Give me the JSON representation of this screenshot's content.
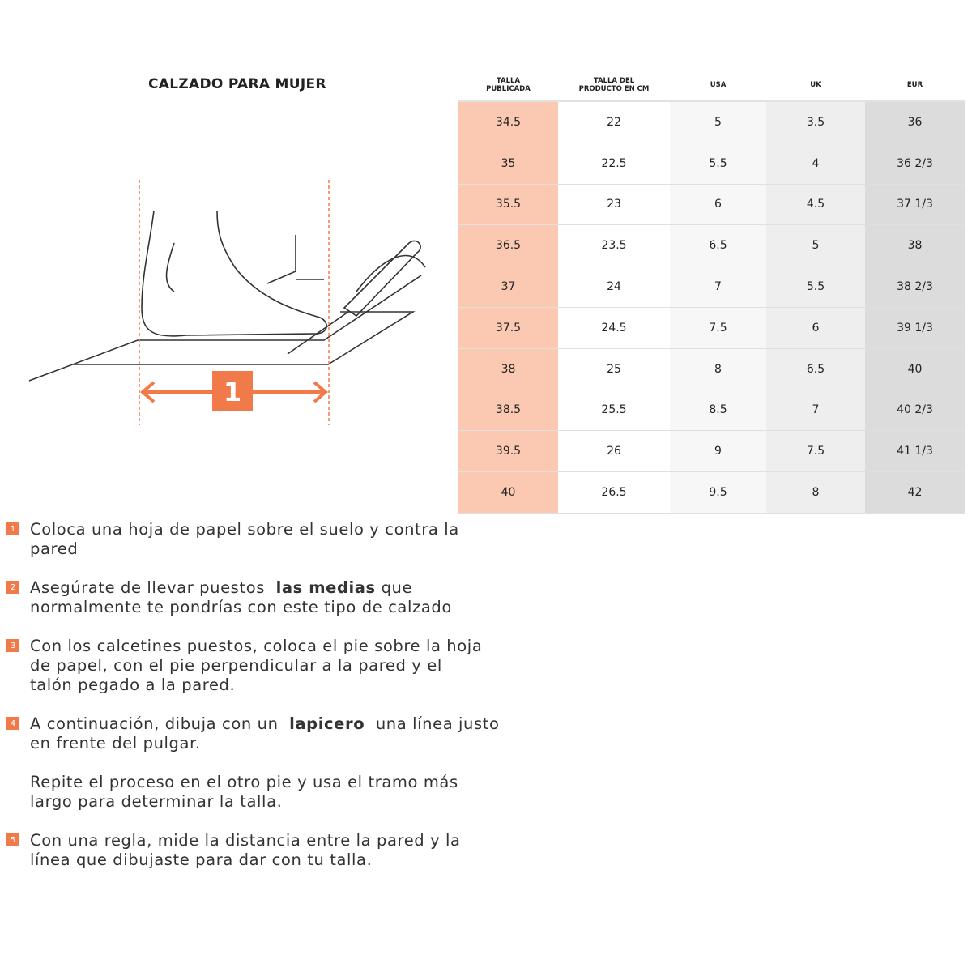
{
  "title": "CALZADO PARA MUJER",
  "diagram": {
    "marker_label": "1",
    "accent": "#f07a4a"
  },
  "table": {
    "headers": [
      "TALLA\nPUBLICADA",
      "TALLA DEL\nPRODUCTO EN CM",
      "USA",
      "UK",
      "EUR"
    ],
    "rows": [
      [
        "34.5",
        "22",
        "5",
        "3.5",
        "36"
      ],
      [
        "35",
        "22.5",
        "5.5",
        "4",
        "36 2/3"
      ],
      [
        "35.5",
        "23",
        "6",
        "4.5",
        "37 1/3"
      ],
      [
        "36.5",
        "23.5",
        "6.5",
        "5",
        "38"
      ],
      [
        "37",
        "24",
        "7",
        "5.5",
        "38 2/3"
      ],
      [
        "37.5",
        "24.5",
        "7.5",
        "6",
        "39 1/3"
      ],
      [
        "38",
        "25",
        "8",
        "6.5",
        "40"
      ],
      [
        "38.5",
        "25.5",
        "8.5",
        "7",
        "40 2/3"
      ],
      [
        "39.5",
        "26",
        "9",
        "7.5",
        "41 1/3"
      ],
      [
        "40",
        "26.5",
        "9.5",
        "8",
        "42"
      ]
    ],
    "column_colors": [
      "#fbc9b2",
      "#ffffff",
      "#f7f7f7",
      "#eeeeee",
      "#dcdcdc"
    ]
  },
  "steps": [
    {
      "badge": "1",
      "lines": [
        [
          {
            "t": "Coloca una hoja de papel sobre el suelo y contra la"
          }
        ],
        [
          {
            "t": "pared"
          }
        ]
      ]
    },
    {
      "badge": "2",
      "lines": [
        [
          {
            "t": "Asegúrate de llevar puestos  "
          },
          {
            "t": "las medias",
            "b": true
          },
          {
            "t": " que"
          }
        ],
        [
          {
            "t": "normalmente te pondrías con este tipo de calzado"
          }
        ]
      ]
    },
    {
      "badge": "3",
      "lines": [
        [
          {
            "t": "Con los calcetines puestos, coloca el pie sobre la hoja"
          }
        ],
        [
          {
            "t": "de papel, con el pie perpendicular a la pared y el"
          }
        ],
        [
          {
            "t": "talón pegado a la pared."
          }
        ]
      ]
    },
    {
      "badge": "4",
      "lines": [
        [
          {
            "t": "A continuación, dibuja con un  "
          },
          {
            "t": "lapicero",
            "b": true
          },
          {
            "t": "  una línea justo"
          }
        ],
        [
          {
            "t": "en frente del pulgar."
          }
        ]
      ]
    },
    {
      "badge": "",
      "lines": [
        [
          {
            "t": "Repite el proceso en el otro pie y usa el tramo más"
          }
        ],
        [
          {
            "t": "largo para determinar la talla."
          }
        ]
      ]
    },
    {
      "badge": "5",
      "lines": [
        [
          {
            "t": "Con una regla, mide la distancia entre la pared y la"
          }
        ],
        [
          {
            "t": "línea que dibujaste para dar con tu talla."
          }
        ]
      ]
    }
  ]
}
